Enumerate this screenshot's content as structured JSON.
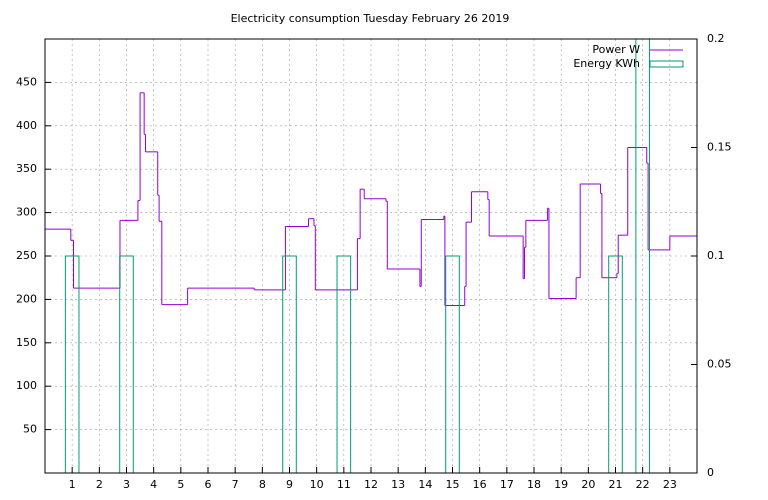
{
  "chart_data": {
    "type": "step-bar",
    "title": "Electricity consumption Tuesday February 26 2019",
    "xlim": [
      0,
      24
    ],
    "xticks": [
      1,
      2,
      3,
      4,
      5,
      6,
      7,
      8,
      9,
      10,
      11,
      12,
      13,
      14,
      15,
      16,
      17,
      18,
      19,
      20,
      21,
      22,
      23
    ],
    "ylim": [
      0,
      500
    ],
    "yticks": [
      50,
      100,
      150,
      200,
      250,
      300,
      350,
      400,
      450
    ],
    "y2lim": [
      0,
      0.2
    ],
    "y2ticks": [
      0,
      0.05,
      0.1,
      0.15,
      0.2
    ],
    "grid": true,
    "legend": "top-right",
    "series": [
      {
        "name": "Power W",
        "color": "#9400d3",
        "x": [
          0,
          0.95,
          1.05,
          2.76,
          3.42,
          3.5,
          3.65,
          3.7,
          4.15,
          4.2,
          4.3,
          5.25,
          7.7,
          8.85,
          9.7,
          9.9,
          9.95,
          11.5,
          11.6,
          11.75,
          12.55,
          12.6,
          13.8,
          13.85,
          14.68,
          14.72,
          15.45,
          15.5,
          15.7,
          16.3,
          16.35,
          17.6,
          17.65,
          17.7,
          18.5,
          18.55,
          19.55,
          19.7,
          20.45,
          20.5,
          21.05,
          21.1,
          21.45,
          22.15,
          22.2,
          23.0
        ],
        "values": [
          281,
          268,
          213,
          291,
          314,
          438,
          390,
          370,
          320,
          290,
          194,
          213,
          211,
          284,
          293,
          285,
          211,
          270,
          327,
          316,
          313,
          235,
          215,
          292,
          296,
          193,
          215,
          289,
          324,
          315,
          273,
          224,
          260,
          291,
          305,
          201,
          225,
          333,
          322,
          225,
          230,
          274,
          375,
          357,
          257,
          273
        ]
      },
      {
        "name": "Energy KWh",
        "color": "#009e73",
        "axis": "y2",
        "x": [
          1,
          3,
          9,
          11,
          15,
          21,
          22
        ],
        "values": [
          0.1,
          0.1,
          0.1,
          0.1,
          0.1,
          0.1,
          0.2
        ]
      }
    ]
  }
}
